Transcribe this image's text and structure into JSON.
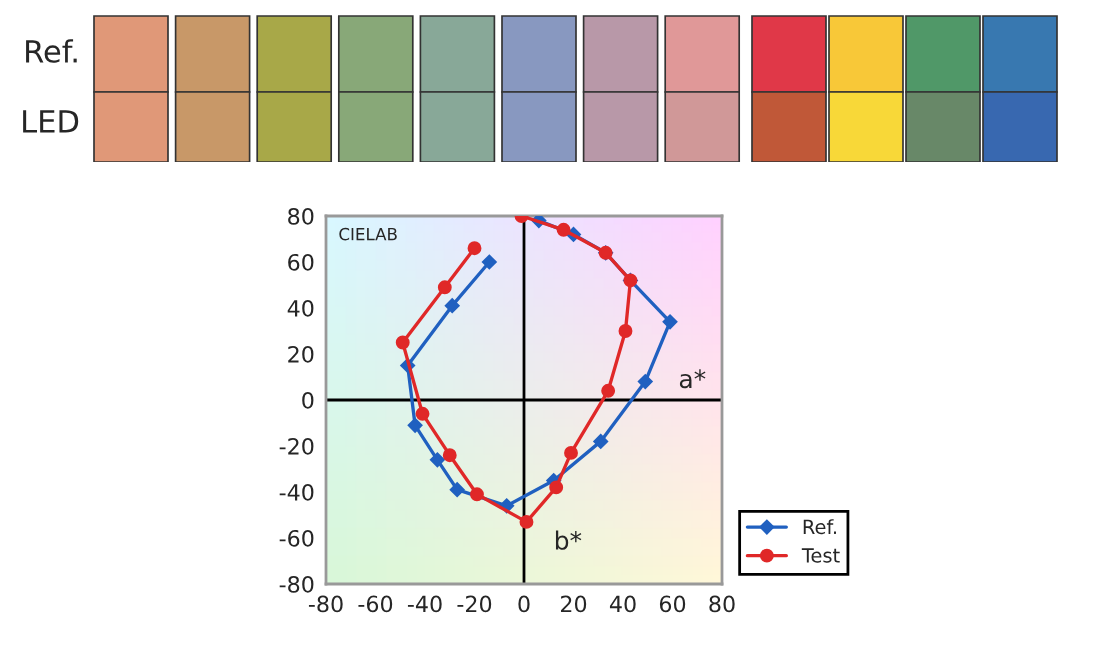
{
  "chart_data": {
    "type": "line",
    "annotations": [
      "CIELAB",
      "Ref.",
      "LED"
    ],
    "xlim": [
      -80,
      80
    ],
    "ylim": [
      -80,
      80
    ],
    "xticks": [
      -80,
      -60,
      -40,
      -20,
      0,
      20,
      40,
      60,
      80
    ],
    "yticks": [
      -80,
      -60,
      -40,
      -20,
      0,
      20,
      40,
      60,
      80
    ],
    "legend": "bottom right",
    "ref_lines": [
      {
        "axis": "y",
        "value": 0,
        "label": "a*",
        "color": "#000000"
      },
      {
        "axis": "x",
        "value": 0,
        "label": "b*",
        "color": "#000000"
      }
    ],
    "series": [
      {
        "name": "Ref.",
        "color": "#2060c0",
        "marker": "diamond",
        "x": [
          6,
          20,
          33,
          43,
          59,
          49,
          31,
          12,
          -7,
          -27,
          -35,
          -44,
          -47,
          -29,
          -14
        ],
        "values": [
          78,
          72,
          64,
          52,
          34,
          8,
          -18,
          -35,
          -46,
          -39,
          -26,
          -11,
          15,
          41,
          60
        ]
      },
      {
        "name": "Test",
        "color": "#e02828",
        "marker": "circle",
        "x": [
          -1,
          16,
          33,
          43,
          41,
          34,
          19,
          13,
          1,
          -19,
          -30,
          -41,
          -49,
          -32,
          -20
        ],
        "values": [
          80,
          74,
          64,
          52,
          30,
          4,
          -23,
          -38,
          -53,
          -41,
          -24,
          -6,
          25,
          49,
          66
        ]
      }
    ]
  }
}
